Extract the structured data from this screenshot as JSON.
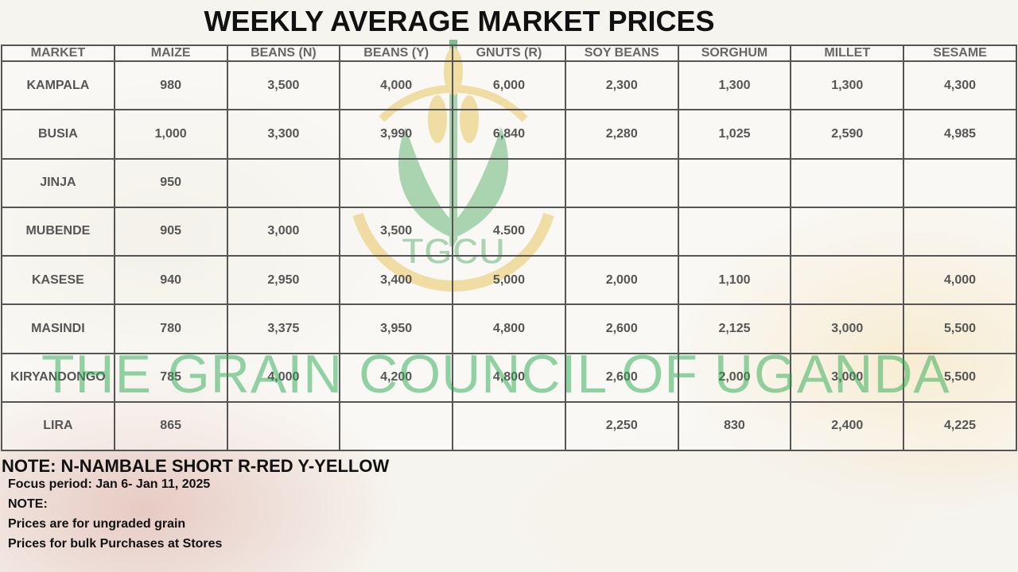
{
  "header": {
    "title": "WEEKLY AVERAGE MARKET PRICES"
  },
  "table": {
    "columns": [
      "MARKET",
      "MAIZE",
      "BEANS (N)",
      "BEANS (Y)",
      "GNUTS (R)",
      "SOY BEANS",
      "SORGHUM",
      "MILLET",
      "SESAME"
    ],
    "rows": [
      [
        "KAMPALA",
        "980",
        "3,500",
        "4,000",
        "6,000",
        "2,300",
        "1,300",
        "1,300",
        "4,300"
      ],
      [
        "BUSIA",
        "1,000",
        "3,300",
        "3,990",
        "6,840",
        "2,280",
        "1,025",
        "2,590",
        "4,985"
      ],
      [
        "JINJA",
        "950",
        null,
        null,
        null,
        null,
        null,
        null,
        null
      ],
      [
        "MUBENDE",
        "905",
        "3,000",
        "3,500",
        "4.500",
        null,
        null,
        null,
        null
      ],
      [
        "KASESE",
        "940",
        "2,950",
        "3,400",
        "5,000",
        "2,000",
        "1,100",
        null,
        "4,000"
      ],
      [
        "MASINDI",
        "780",
        "3,375",
        "3,950",
        "4,800",
        "2,600",
        "2,125",
        "3,000",
        "5,500"
      ],
      [
        "KIRYANDONGO",
        "785",
        "4,000",
        "4,200",
        "4,800",
        "2,600",
        "2,000",
        "3,000",
        "5,500"
      ],
      [
        "LIRA",
        "865",
        null,
        null,
        null,
        "2,250",
        "830",
        "2,400",
        "4,225"
      ]
    ]
  },
  "watermark": {
    "logo_text": "TGCU",
    "text": "THE GRAIN COUNCIL OF UGANDA"
  },
  "notes": {
    "legend": "NOTE: N-NAMBALE SHORT R-RED Y-YELLOW",
    "lines": [
      "Focus period: Jan 6- Jan 11, 2025",
      "NOTE:",
      "Prices are for ungraded grain",
      "Prices for bulk Purchases at Stores"
    ]
  }
}
